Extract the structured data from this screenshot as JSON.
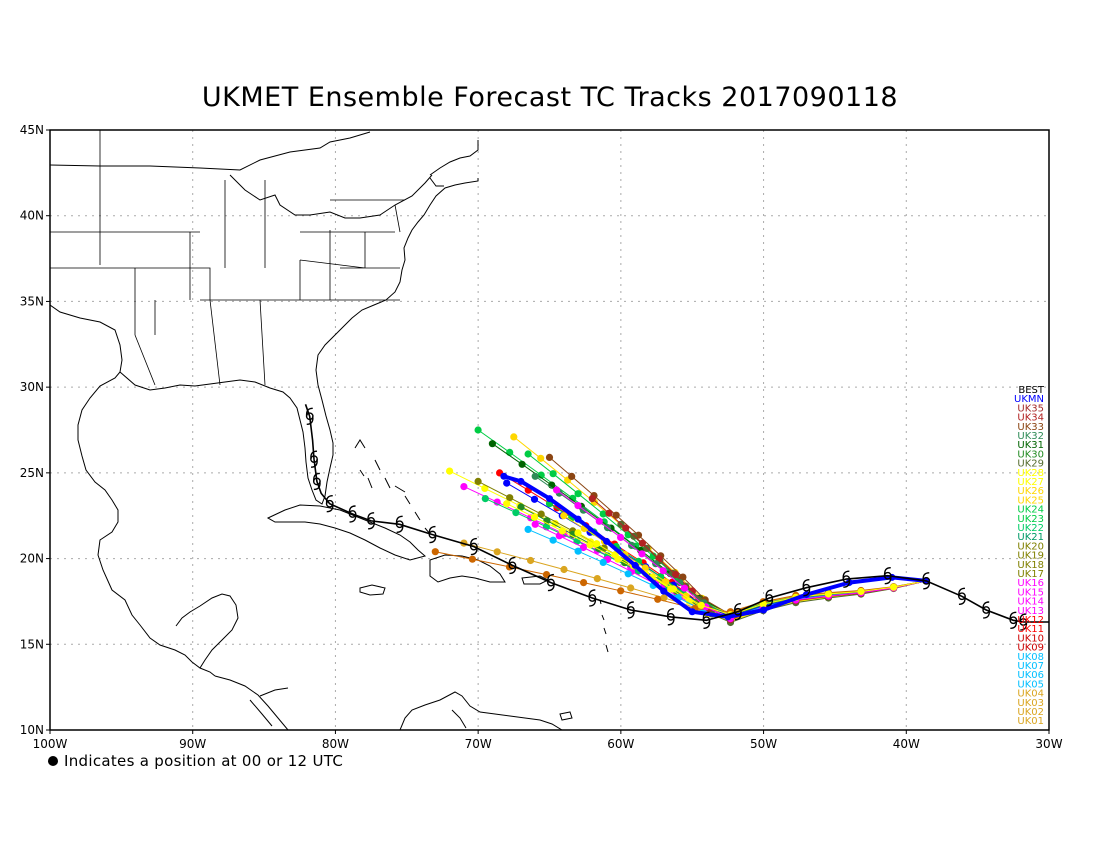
{
  "title": "UKMET Ensemble Forecast TC Tracks 2017090118",
  "footnote": "Indicates a position at 00 or 12 UTC",
  "x_ticks": [
    "100W",
    "90W",
    "80W",
    "70W",
    "60W",
    "50W",
    "40W",
    "30W"
  ],
  "y_ticks": [
    "10N",
    "15N",
    "20N",
    "25N",
    "30N",
    "35N",
    "40N",
    "45N"
  ],
  "legend": [
    {
      "label": "BEST",
      "color": "#000000"
    },
    {
      "label": "UKMN",
      "color": "#0000ff"
    },
    {
      "label": "UK35",
      "color": "#a52a2a"
    },
    {
      "label": "UK34",
      "color": "#b22222"
    },
    {
      "label": "UK33",
      "color": "#8b4513"
    },
    {
      "label": "UK32",
      "color": "#2e8b57"
    },
    {
      "label": "UK31",
      "color": "#006400"
    },
    {
      "label": "UK30",
      "color": "#228b22"
    },
    {
      "label": "UK29",
      "color": "#556b2f"
    },
    {
      "label": "UK28",
      "color": "#ffff00"
    },
    {
      "label": "UK27",
      "color": "#ffff00"
    },
    {
      "label": "UK26",
      "color": "#ffd700"
    },
    {
      "label": "UK25",
      "color": "#ffd700"
    },
    {
      "label": "UK24",
      "color": "#00cc44"
    },
    {
      "label": "UK23",
      "color": "#00cc44"
    },
    {
      "label": "UK22",
      "color": "#00cc66"
    },
    {
      "label": "UK21",
      "color": "#009966"
    },
    {
      "label": "UK20",
      "color": "#808000"
    },
    {
      "label": "UK19",
      "color": "#808000"
    },
    {
      "label": "UK18",
      "color": "#808000"
    },
    {
      "label": "UK17",
      "color": "#808000"
    },
    {
      "label": "UK16",
      "color": "#ff00ff"
    },
    {
      "label": "UK15",
      "color": "#ff00ff"
    },
    {
      "label": "UK14",
      "color": "#ff00ff"
    },
    {
      "label": "UK13",
      "color": "#ff00ff"
    },
    {
      "label": "UK12",
      "color": "#ff0000"
    },
    {
      "label": "UK11",
      "color": "#ff0000"
    },
    {
      "label": "UK10",
      "color": "#cc0000"
    },
    {
      "label": "UK09",
      "color": "#cc0000"
    },
    {
      "label": "UK08",
      "color": "#00bfff"
    },
    {
      "label": "UK07",
      "color": "#00bfff"
    },
    {
      "label": "UK06",
      "color": "#00bfff"
    },
    {
      "label": "UK05",
      "color": "#00bfff"
    },
    {
      "label": "UK04",
      "color": "#daa520"
    },
    {
      "label": "UK03",
      "color": "#daa520"
    },
    {
      "label": "UK02",
      "color": "#daa520"
    },
    {
      "label": "UK01",
      "color": "#daa520"
    }
  ],
  "extent": {
    "lon_min": -100,
    "lon_max": -30,
    "lat_min": 10,
    "lat_max": 45
  },
  "best_track": [
    [
      -82.1,
      29.0
    ],
    [
      -81.8,
      28.3
    ],
    [
      -81.6,
      26.9
    ],
    [
      -81.5,
      25.8
    ],
    [
      -81.3,
      24.5
    ],
    [
      -81.0,
      23.8
    ],
    [
      -80.4,
      23.2
    ],
    [
      -78.8,
      22.6
    ],
    [
      -77.5,
      22.2
    ],
    [
      -75.5,
      22.0
    ],
    [
      -73.2,
      21.4
    ],
    [
      -70.3,
      20.7
    ],
    [
      -67.6,
      19.6
    ],
    [
      -64.9,
      18.6
    ],
    [
      -62.0,
      17.7
    ],
    [
      -59.3,
      17.0
    ],
    [
      -56.5,
      16.6
    ],
    [
      -54.0,
      16.4
    ],
    [
      -51.8,
      16.9
    ],
    [
      -49.6,
      17.7
    ],
    [
      -47.0,
      18.3
    ],
    [
      -44.2,
      18.8
    ],
    [
      -41.3,
      19.0
    ],
    [
      -38.6,
      18.7
    ],
    [
      -36.1,
      17.8
    ],
    [
      -34.4,
      17.0
    ],
    [
      -32.5,
      16.4
    ],
    [
      -31.8,
      16.3
    ],
    [
      -30.0,
      16.3
    ]
  ],
  "best_storm_symbols": [
    [
      -81.8,
      28.3
    ],
    [
      -81.5,
      25.8
    ],
    [
      -81.3,
      24.5
    ],
    [
      -80.4,
      23.2
    ],
    [
      -78.8,
      22.6
    ],
    [
      -77.5,
      22.2
    ],
    [
      -75.5,
      22.0
    ],
    [
      -73.2,
      21.4
    ],
    [
      -70.3,
      20.7
    ],
    [
      -67.6,
      19.6
    ],
    [
      -64.9,
      18.6
    ],
    [
      -62.0,
      17.7
    ],
    [
      -59.3,
      17.0
    ],
    [
      -56.5,
      16.6
    ],
    [
      -54.0,
      16.4
    ],
    [
      -51.8,
      16.9
    ],
    [
      -49.6,
      17.7
    ],
    [
      -47.0,
      18.3
    ],
    [
      -44.2,
      18.8
    ],
    [
      -41.3,
      19.0
    ],
    [
      -38.6,
      18.7
    ],
    [
      -36.1,
      17.8
    ],
    [
      -34.4,
      17.0
    ],
    [
      -32.5,
      16.4
    ],
    [
      -31.8,
      16.3
    ]
  ],
  "ensemble_mean": [
    [
      -38.6,
      18.7
    ],
    [
      -41.0,
      18.9
    ],
    [
      -44.0,
      18.6
    ],
    [
      -47.0,
      17.9
    ],
    [
      -50.0,
      17.0
    ],
    [
      -52.5,
      16.6
    ],
    [
      -55.0,
      16.9
    ],
    [
      -57.0,
      18.1
    ],
    [
      -59.0,
      19.6
    ],
    [
      -61.0,
      21.0
    ],
    [
      -63.0,
      22.3
    ],
    [
      -65.0,
      23.5
    ],
    [
      -67.0,
      24.5
    ],
    [
      -68.2,
      24.8
    ]
  ],
  "ensemble_members": [
    {
      "color": "#00cc44",
      "end": [
        -70.0,
        27.5
      ],
      "spread": 0.0
    },
    {
      "color": "#ffd700",
      "end": [
        -67.5,
        27.1
      ],
      "spread": 0.1
    },
    {
      "color": "#006400",
      "end": [
        -69.0,
        26.7
      ],
      "spread": 0.2
    },
    {
      "color": "#00cc44",
      "end": [
        -66.5,
        26.1
      ],
      "spread": -0.1
    },
    {
      "color": "#8b4513",
      "end": [
        -65.0,
        25.9
      ],
      "spread": 0.2
    },
    {
      "color": "#ff0000",
      "end": [
        -68.5,
        25.0
      ],
      "spread": 0.0
    },
    {
      "color": "#ffff00",
      "end": [
        -72.0,
        25.1
      ],
      "spread": 0.3
    },
    {
      "color": "#ff00ff",
      "end": [
        -71.0,
        24.2
      ],
      "spread": 0.2
    },
    {
      "color": "#808000",
      "end": [
        -70.0,
        24.5
      ],
      "spread": 0.1
    },
    {
      "color": "#0000ff",
      "end": [
        -68.0,
        24.4
      ],
      "spread": 0.0
    },
    {
      "color": "#00cc66",
      "end": [
        -69.5,
        23.5
      ],
      "spread": 0.3
    },
    {
      "color": "#228b22",
      "end": [
        -67.0,
        23.0
      ],
      "spread": -0.2
    },
    {
      "color": "#00cc44",
      "end": [
        -65.0,
        23.2
      ],
      "spread": -0.3
    },
    {
      "color": "#ffd700",
      "end": [
        -64.0,
        22.5
      ],
      "spread": -0.4
    },
    {
      "color": "#ff00ff",
      "end": [
        -66.0,
        22.0
      ],
      "spread": -0.2
    },
    {
      "color": "#ffff00",
      "end": [
        -63.0,
        21.5
      ],
      "spread": -0.5
    },
    {
      "color": "#00bfff",
      "end": [
        -66.5,
        21.7
      ],
      "spread": -0.1
    },
    {
      "color": "#daa520",
      "end": [
        -71.0,
        20.9
      ],
      "spread": 0.4
    },
    {
      "color": "#cc6600",
      "end": [
        -73.0,
        20.4
      ],
      "spread": 0.5
    },
    {
      "color": "#556b2f",
      "end": [
        -60.0,
        22.0
      ],
      "spread": -0.6
    },
    {
      "color": "#b22222",
      "end": [
        -62.0,
        23.5
      ],
      "spread": -0.3
    },
    {
      "color": "#2e8b57",
      "end": [
        -66.0,
        24.8
      ],
      "spread": 0.1
    },
    {
      "color": "#ff00ff",
      "end": [
        -64.5,
        24.0
      ],
      "spread": -0.2
    },
    {
      "color": "#ffff00",
      "end": [
        -68.0,
        23.2
      ],
      "spread": 0.2
    }
  ]
}
